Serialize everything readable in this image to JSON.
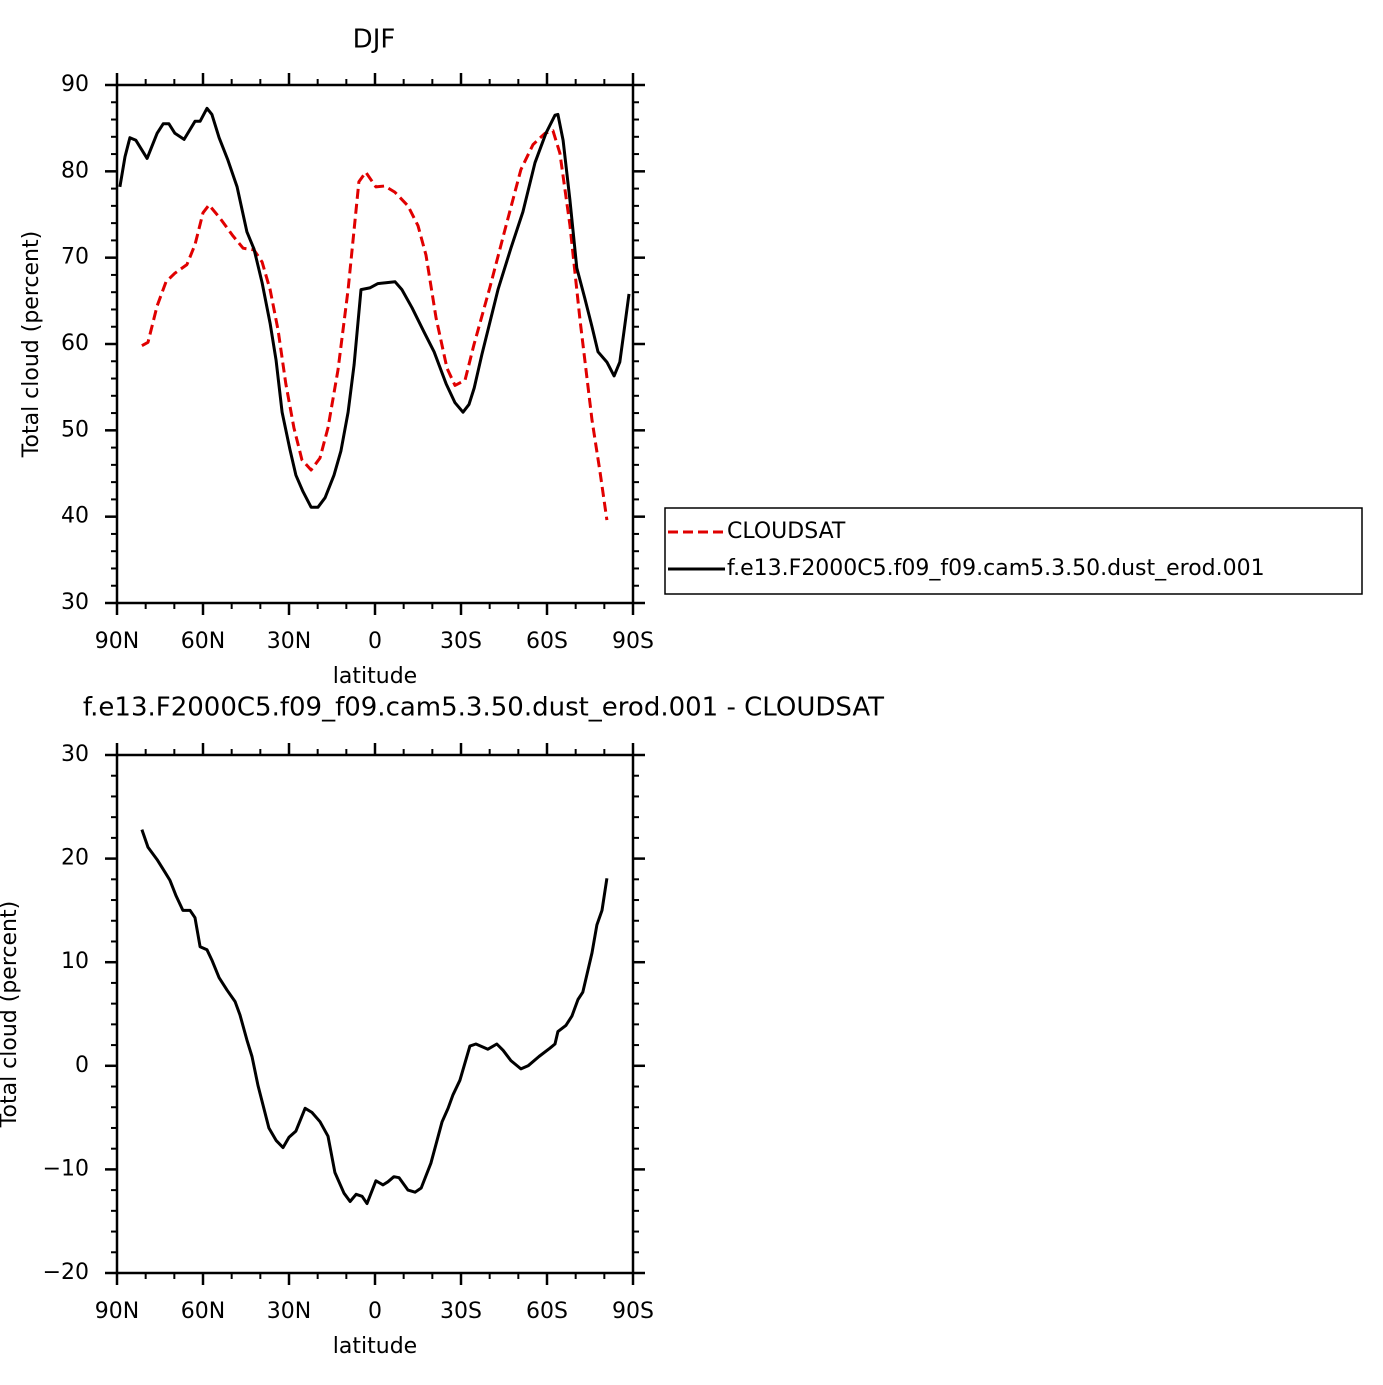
{
  "chart_data": [
    {
      "type": "line",
      "title": "DJF",
      "xlabel": "latitude",
      "ylabel": "Total cloud (percent)",
      "xlim": [
        90,
        -90
      ],
      "xticks": [
        {
          "value": 90,
          "label": "90N"
        },
        {
          "value": 60,
          "label": "60N"
        },
        {
          "value": 30,
          "label": "30N"
        },
        0,
        {
          "value": -30,
          "label": "30S"
        },
        {
          "value": -60,
          "label": "60S"
        },
        {
          "value": -90,
          "label": "90S"
        }
      ],
      "ylim": [
        30,
        90
      ],
      "yticks": [
        30,
        40,
        50,
        60,
        70,
        80,
        90
      ],
      "legend_position": "right",
      "series": [
        {
          "name": "CLOUDSAT",
          "color": "#e00000",
          "style": "dashed",
          "x": [
            81.3,
            79.2,
            76,
            72.9,
            69.8,
            65.6,
            62.8,
            60,
            57.9,
            54.1,
            49.5,
            46,
            42.2,
            39.4,
            36.6,
            33.8,
            31.1,
            28.3,
            25.5,
            22.3,
            19.2,
            16.4,
            12.9,
            9.4,
            5.6,
            3.2,
            -0.3,
            -3.4,
            -6.9,
            -11.5,
            -15,
            -17.8,
            -21.3,
            -25.1,
            -27.9,
            -31.4,
            -34.5,
            -40.1,
            -45.3,
            -50.9,
            -55.1,
            -59.3,
            -62.1,
            -64.5,
            -68,
            -71.5,
            -75.7,
            -78.5,
            -80.9
          ],
          "values": [
            59.8,
            60.2,
            64.4,
            67.2,
            68.2,
            69.2,
            71.5,
            75.2,
            76.1,
            74.6,
            72.5,
            71.1,
            70.9,
            69.5,
            66.3,
            61.6,
            55.4,
            50.3,
            46.6,
            45.4,
            46.8,
            50.3,
            57,
            66.3,
            78.8,
            79.9,
            78.2,
            78.3,
            77.6,
            76,
            73.7,
            70.3,
            63,
            57.2,
            55.2,
            55.8,
            59.9,
            66.6,
            73.2,
            80.2,
            83.1,
            84.4,
            84.7,
            82.1,
            73.8,
            62.8,
            51.2,
            45.2,
            39.6
          ]
        },
        {
          "name": "f.e13.F2000C5.f09_f09.cam5.3.50.dust_erod.001",
          "color": "#000000",
          "style": "solid",
          "x": [
            89,
            87.2,
            85.5,
            83.4,
            79.5,
            76,
            73.9,
            71.9,
            69.8,
            66.6,
            62.8,
            61,
            58.6,
            56.9,
            54.4,
            51.3,
            48.1,
            44.7,
            42.2,
            39.4,
            36.6,
            34.5,
            32.4,
            29.7,
            27.6,
            25.1,
            22.3,
            19.9,
            17.4,
            14.3,
            11.9,
            9.4,
            7.3,
            4.9,
            1.8,
            -1,
            -3.8,
            -7,
            -9.4,
            -12.9,
            -17.1,
            -20.6,
            -24.8,
            -27.9,
            -30.7,
            -32.8,
            -34.6,
            -37.3,
            -42.9,
            -47.4,
            -51.6,
            -55.8,
            -59.6,
            -62.8,
            -63.8,
            -65.6,
            -68,
            -70.4,
            -73.2,
            -75.7,
            -77.8,
            -80.9,
            -83.4,
            -85.4,
            -86.8,
            -88.6
          ],
          "values": [
            78.2,
            81.7,
            83.9,
            83.6,
            81.5,
            84.4,
            85.5,
            85.5,
            84.4,
            83.7,
            85.8,
            85.8,
            87.3,
            86.6,
            83.9,
            81.3,
            78.2,
            73,
            71,
            67.1,
            62.4,
            58.1,
            52.1,
            47.8,
            44.8,
            42.9,
            41.1,
            41.1,
            42.2,
            44.8,
            47.6,
            52.1,
            57.6,
            66.3,
            66.5,
            67,
            67.1,
            67.2,
            66.3,
            64.2,
            61.4,
            59.1,
            55.4,
            53.2,
            52.1,
            53,
            54.9,
            58.8,
            66.3,
            71.1,
            75.3,
            81,
            84.4,
            86.5,
            86.6,
            83.6,
            76.7,
            68.8,
            65.3,
            62,
            59.1,
            57.9,
            56.3,
            57.9,
            61.3,
            65.8
          ]
        }
      ]
    },
    {
      "type": "line",
      "title": "f.e13.F2000C5.f09_f09.cam5.3.50.dust_erod.001 - CLOUDSAT",
      "xlabel": "latitude",
      "ylabel": "Total cloud (percent)",
      "xlim": [
        90,
        -90
      ],
      "xticks": [
        {
          "value": 90,
          "label": "90N"
        },
        {
          "value": 60,
          "label": "60N"
        },
        {
          "value": 30,
          "label": "30N"
        },
        0,
        {
          "value": -30,
          "label": "30S"
        },
        {
          "value": -60,
          "label": "60S"
        },
        {
          "value": -90,
          "label": "90S"
        }
      ],
      "ylim": [
        -20,
        30
      ],
      "yticks": [
        {
          "value": -20,
          "label": "−20"
        },
        {
          "value": -10,
          "label": "−10"
        },
        0,
        10,
        20,
        30
      ],
      "series": [
        {
          "color": "#000000",
          "style": "solid",
          "x": [
            81.3,
            79.2,
            76,
            73.3,
            71.5,
            69.4,
            67,
            64.5,
            62.8,
            61,
            58.6,
            56.9,
            54.4,
            51.6,
            48.8,
            47.1,
            44.7,
            42.9,
            40.8,
            37,
            34.5,
            32.1,
            30,
            27.6,
            24.4,
            22,
            19.2,
            16.4,
            14,
            10.8,
            8.7,
            6.6,
            4.5,
            2.8,
            -0.3,
            -2.8,
            -4.5,
            -6.6,
            -8.4,
            -11.5,
            -14,
            -16.1,
            -19.5,
            -23.4,
            -25.5,
            -27.2,
            -29.6,
            -33.1,
            -35.2,
            -39.4,
            -42.5,
            -44.7,
            -47.4,
            -50.9,
            -53.4,
            -57.2,
            -61,
            -62.8,
            -63.8,
            -66.6,
            -68.7,
            -70.8,
            -72.5,
            -75.7,
            -77.4,
            -79.2,
            -80.9
          ],
          "values": [
            22.8,
            21.1,
            19.9,
            18.7,
            17.9,
            16.4,
            15,
            15,
            14.3,
            11.5,
            11.2,
            10.2,
            8.5,
            7.3,
            6.2,
            4.9,
            2.5,
            0.9,
            -1.9,
            -6,
            -7.2,
            -7.9,
            -6.9,
            -6.3,
            -4.1,
            -4.5,
            -5.4,
            -6.8,
            -10.3,
            -12.3,
            -13.1,
            -12.4,
            -12.6,
            -13.3,
            -11.1,
            -11.5,
            -11.2,
            -10.7,
            -10.8,
            -12,
            -12.2,
            -11.8,
            -9.4,
            -5.4,
            -4.1,
            -2.8,
            -1.4,
            1.9,
            2.1,
            1.6,
            2.1,
            1.5,
            0.5,
            -0.3,
            0,
            0.9,
            1.7,
            2.1,
            3.3,
            3.9,
            4.8,
            6.4,
            7.1,
            10.9,
            13.6,
            15,
            18.1
          ]
        }
      ]
    }
  ]
}
